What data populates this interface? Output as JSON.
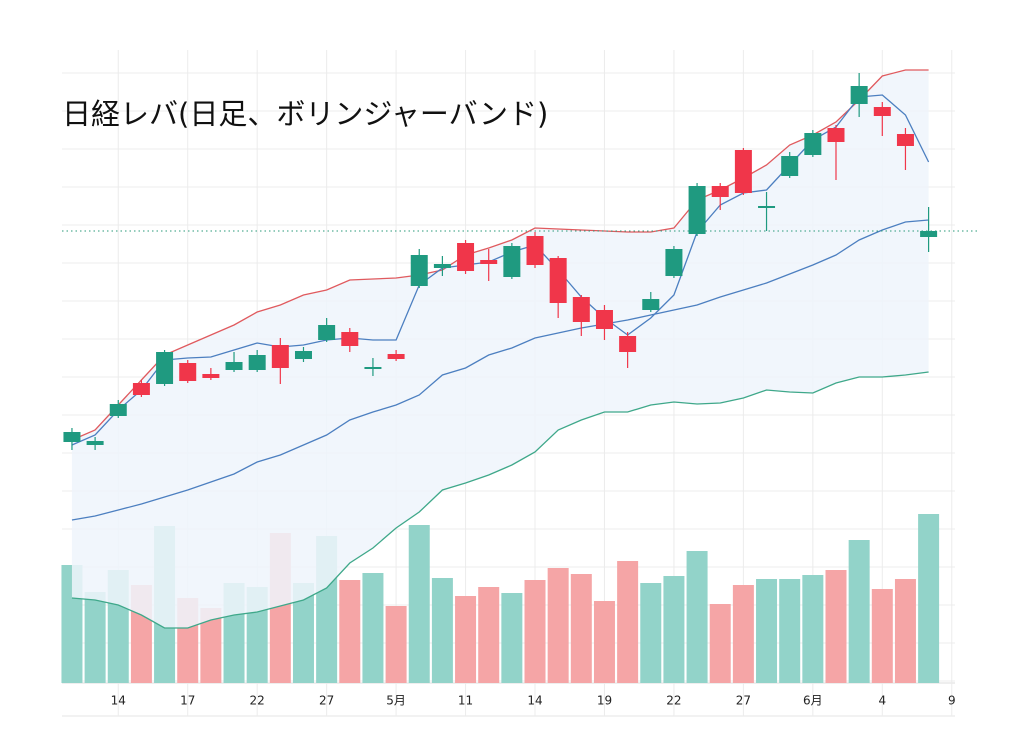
{
  "chart_data": {
    "type": "candlestick",
    "title": "日経レバ(日足、ボリンジャーバンド)",
    "x": [
      0,
      1,
      2,
      3,
      4,
      5,
      6,
      7,
      8,
      9,
      10,
      11,
      12,
      13,
      14,
      15,
      16,
      17,
      18,
      19,
      20,
      21,
      22,
      23,
      24,
      25,
      26,
      27,
      28,
      29,
      30,
      31,
      32,
      33,
      34,
      35,
      36,
      37
    ],
    "xlim": [
      -0.43,
      38.14
    ],
    "xticks": [
      {
        "value": 2,
        "label": "14"
      },
      {
        "value": 5,
        "label": "17"
      },
      {
        "value": 8,
        "label": "22"
      },
      {
        "value": 11,
        "label": "27"
      },
      {
        "value": 14,
        "label": "5月"
      },
      {
        "value": 17,
        "label": "11"
      },
      {
        "value": 20,
        "label": "14"
      },
      {
        "value": 23,
        "label": "19"
      },
      {
        "value": 26,
        "label": "22"
      },
      {
        "value": 29,
        "label": "27"
      },
      {
        "value": 32,
        "label": "6月"
      },
      {
        "value": 35,
        "label": "4"
      },
      {
        "value": 38,
        "label": "9"
      }
    ],
    "ylim": [
      35,
      685
    ],
    "open": [
      293,
      290,
      319,
      352,
      351,
      372,
      361,
      365,
      365,
      390,
      376,
      395,
      403,
      366,
      381,
      449,
      467,
      492,
      475,
      458,
      499,
      477,
      438,
      425,
      399,
      425,
      459,
      501,
      549,
      585,
      527,
      559,
      580,
      607,
      631,
      628,
      601,
      498
    ],
    "high": [
      307,
      298,
      335,
      355,
      385,
      375,
      367,
      383,
      385,
      397,
      388,
      417,
      407,
      377,
      385,
      486,
      479,
      495,
      486,
      492,
      503,
      479,
      440,
      430,
      403,
      443,
      489,
      552,
      552,
      587,
      543,
      583,
      605,
      610,
      662,
      633,
      607,
      528
    ],
    "low": [
      285,
      285,
      317,
      338,
      349,
      352,
      355,
      363,
      363,
      351,
      373,
      393,
      383,
      359,
      374,
      447,
      459,
      461,
      454,
      456,
      467,
      417,
      399,
      395,
      367,
      423,
      457,
      499,
      525,
      540,
      504,
      557,
      578,
      555,
      618,
      599,
      565,
      483
    ],
    "close": [
      303,
      294,
      331,
      340,
      383,
      354,
      357,
      373,
      380,
      367,
      384,
      410,
      389,
      368,
      376,
      480,
      471,
      464,
      471,
      489,
      470,
      432,
      413,
      406,
      383,
      436,
      486,
      549,
      538,
      542,
      529,
      579,
      602,
      593,
      649,
      619,
      589,
      504
    ],
    "up_color": "#1f9a80",
    "down_color": "#f0364a",
    "upper": {
      "color": "#e05a5e",
      "values": [
        295,
        305,
        330,
        355,
        380,
        390,
        400,
        410,
        423,
        430,
        440,
        445,
        455,
        456,
        457,
        460,
        465,
        480,
        487,
        495,
        507,
        506,
        505,
        504,
        503,
        503,
        507,
        535,
        545,
        557,
        570,
        590,
        600,
        613,
        635,
        659,
        665,
        665
      ]
    },
    "middle": {
      "color": "#4c7fc0",
      "values": [
        215,
        219,
        225,
        231,
        238,
        245,
        253,
        261,
        273,
        280,
        290,
        300,
        315,
        323,
        330,
        340,
        360,
        367,
        380,
        387,
        397,
        402,
        407,
        411,
        415,
        420,
        425,
        430,
        438,
        445,
        452,
        461,
        470,
        480,
        495,
        505,
        513,
        515
      ]
    },
    "lower": {
      "color": "#3fa88a",
      "values": [
        137,
        135,
        130,
        120,
        107,
        107,
        115,
        120,
        123,
        129,
        135,
        147,
        172,
        187,
        207,
        223,
        245,
        252,
        260,
        270,
        283,
        305,
        315,
        323,
        323,
        330,
        333,
        331,
        332,
        337,
        345,
        343,
        342,
        352,
        358,
        358,
        360,
        363
      ]
    },
    "ma": {
      "color": "#4c7fc0",
      "values": [
        290,
        300,
        325,
        345,
        375,
        377,
        378,
        385,
        392,
        388,
        390,
        395,
        397,
        395,
        395,
        450,
        467,
        470,
        473,
        483,
        490,
        465,
        438,
        417,
        400,
        417,
        440,
        503,
        530,
        542,
        545,
        570,
        595,
        608,
        638,
        640,
        620,
        573
      ]
    },
    "band_fill": "#eef5fc",
    "last_line_color": "#2a9a7a",
    "volume": {
      "up_color": "#92d3c9",
      "down_color": "#f5a5a6",
      "values": [
        118,
        91,
        113,
        98,
        157,
        85,
        75,
        100,
        96,
        150,
        100,
        147,
        103,
        110,
        77,
        158,
        105,
        87,
        96,
        90,
        103,
        115,
        109,
        82,
        122,
        100,
        107,
        132,
        79,
        98,
        104,
        104,
        108,
        113,
        143,
        94,
        104,
        169
      ]
    },
    "y2lim": [
      0,
      633
    ]
  }
}
